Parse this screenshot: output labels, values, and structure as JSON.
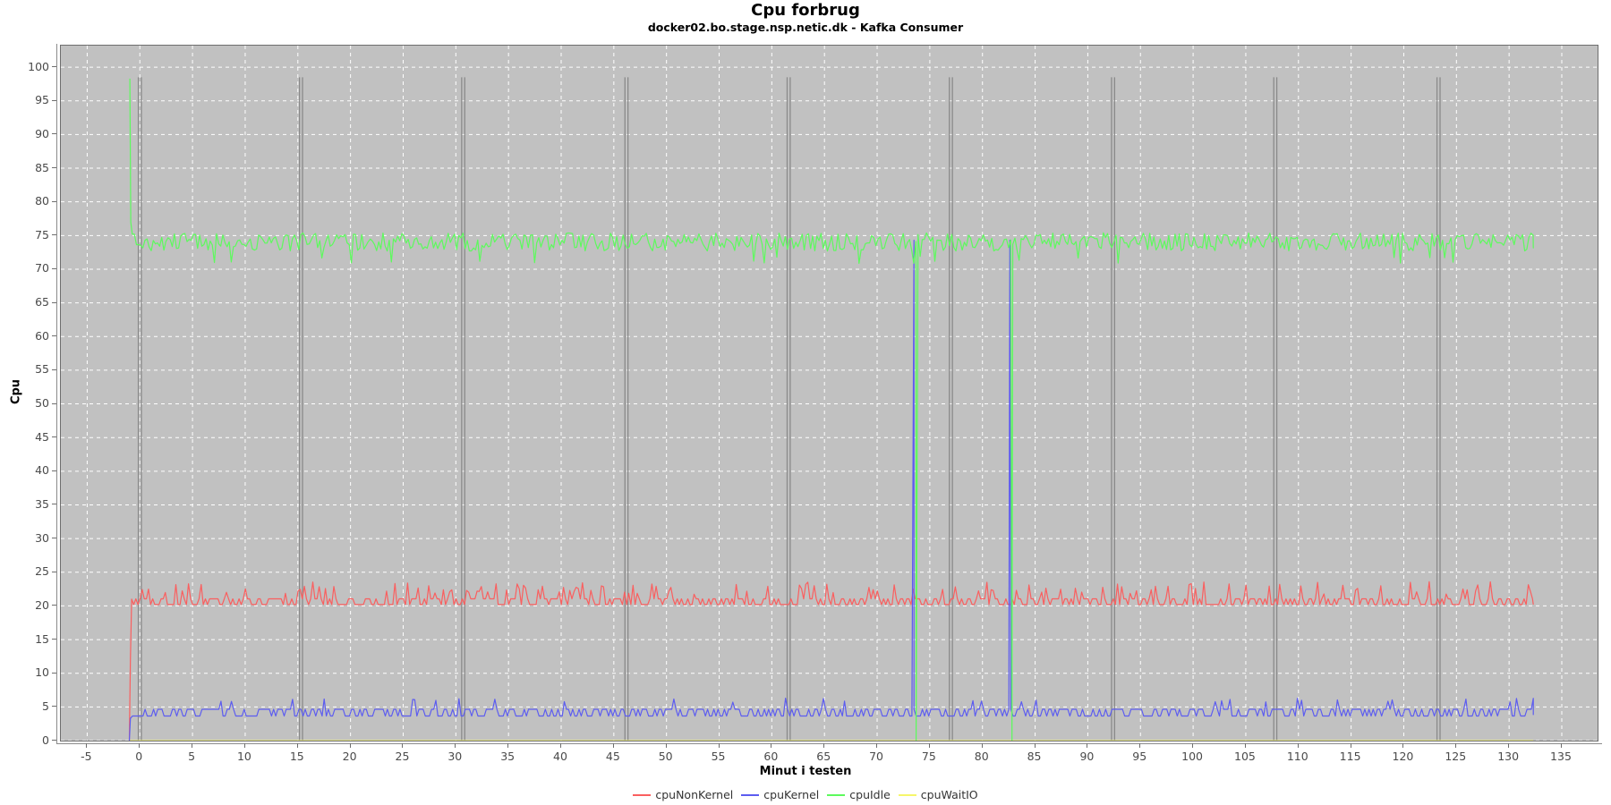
{
  "chart": {
    "title": "Cpu forbrug",
    "subtitle": "docker02.bo.stage.nsp.netic.dk - Kafka Consumer",
    "xlabel": "Minut i testen",
    "ylabel": "Cpu"
  },
  "chart_data": {
    "type": "line",
    "title": "Cpu forbrug",
    "subtitle": "docker02.bo.stage.nsp.netic.dk - Kafka Consumer",
    "xlabel": "Minut i testen",
    "ylabel": "Cpu",
    "xlim": [
      -7.5,
      138.4
    ],
    "ylim": [
      0,
      103.2
    ],
    "x_ticks": [
      -5,
      0,
      5,
      10,
      15,
      20,
      25,
      30,
      35,
      40,
      45,
      50,
      55,
      60,
      65,
      70,
      75,
      80,
      85,
      90,
      95,
      100,
      105,
      110,
      115,
      120,
      125,
      130,
      135
    ],
    "y_ticks": [
      0,
      5,
      10,
      15,
      20,
      25,
      30,
      35,
      40,
      45,
      50,
      55,
      60,
      65,
      70,
      75,
      80,
      85,
      90,
      95,
      100
    ],
    "grid": {
      "color": "#ffffff",
      "style": "dashed",
      "on": true
    },
    "plot_bg": "#c1c1c1",
    "legend_position": "bottom",
    "test_start_minute": -1,
    "test_end_minute": 132.3,
    "sample_step_minutes": 0.2,
    "marker_bars": {
      "color": "#8a8a8a",
      "style": "double",
      "top_value": 98.5,
      "x_values": [
        0,
        15.3,
        30.7,
        46.2,
        61.6,
        77.0,
        92.4,
        107.8,
        123.3
      ]
    },
    "series": [
      {
        "name": "cpuNonKernel",
        "color": "#fa5f5f",
        "seed": 101,
        "wave": "red",
        "base": 20.2,
        "range": [
          20.0,
          23.6
        ],
        "intro": [
          [
            -1.0,
            0
          ],
          [
            -0.9,
            12.0
          ],
          [
            -0.78,
            21.0
          ]
        ],
        "events": []
      },
      {
        "name": "cpuKernel",
        "color": "#5c5cf0",
        "seed": 202,
        "wave": "blue",
        "base": 3.8,
        "range": [
          3.6,
          6.2
        ],
        "intro": [
          [
            -1.0,
            0
          ],
          [
            -0.9,
            3.3
          ]
        ],
        "events": [
          [
            73.5,
            74.3
          ],
          [
            82.6,
            74.3
          ]
        ]
      },
      {
        "name": "cpuIdle",
        "color": "#5dfa5d",
        "seed": 303,
        "wave": "green",
        "base": 74.3,
        "range": [
          71.5,
          75.6
        ],
        "start_value": 98.3,
        "intro": [
          [
            -0.95,
            98.3
          ],
          [
            -0.86,
            77.0
          ],
          [
            -0.72,
            75.2
          ]
        ],
        "events": [
          [
            73.7,
            0
          ],
          [
            82.8,
            0
          ]
        ]
      },
      {
        "name": "cpuWaitIO",
        "color": "#f6f66a",
        "seed": 404,
        "wave": "flat",
        "base": 0,
        "range": [
          0,
          0
        ],
        "intro": [
          [
            -1.0,
            0
          ]
        ],
        "events": []
      }
    ]
  }
}
